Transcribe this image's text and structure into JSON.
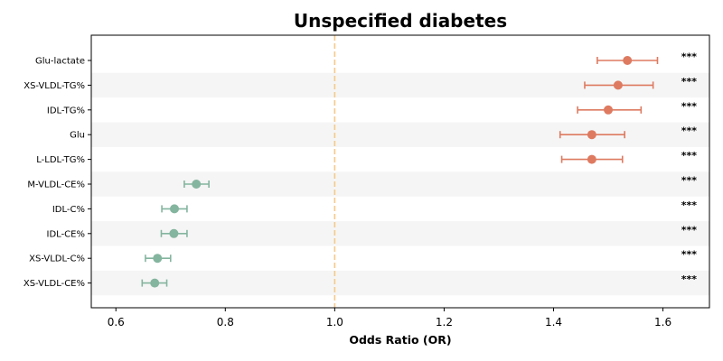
{
  "chart_data": {
    "type": "forest",
    "title": "Unspecified diabetes",
    "xlabel": "Odds Ratio (OR)",
    "xlim": [
      0.555,
      1.685
    ],
    "xticks": [
      0.6,
      0.8,
      1.0,
      1.2,
      1.4,
      1.6
    ],
    "xtick_labels": [
      "0.6",
      "0.8",
      "1.0",
      "1.2",
      "1.4",
      "1.6"
    ],
    "reference_line": 1.0,
    "colors": {
      "positive": "#de7a60",
      "negative": "#84b59f",
      "reference": "#f5c98a",
      "stripe": "#f5f5f5"
    },
    "rows": [
      {
        "label": "Glu-lactate",
        "or": 1.535,
        "ci_low": 1.48,
        "ci_high": 1.59,
        "sig": "***"
      },
      {
        "label": "XS-VLDL-TG%",
        "or": 1.518,
        "ci_low": 1.457,
        "ci_high": 1.582,
        "sig": "***"
      },
      {
        "label": "IDL-TG%",
        "or": 1.5,
        "ci_low": 1.444,
        "ci_high": 1.56,
        "sig": "***"
      },
      {
        "label": "Glu",
        "or": 1.47,
        "ci_low": 1.412,
        "ci_high": 1.53,
        "sig": "***"
      },
      {
        "label": "L-LDL-TG%",
        "or": 1.47,
        "ci_low": 1.415,
        "ci_high": 1.526,
        "sig": "***"
      },
      {
        "label": "M-VLDL-CE%",
        "or": 0.747,
        "ci_low": 0.725,
        "ci_high": 0.77,
        "sig": "***"
      },
      {
        "label": "IDL-C%",
        "or": 0.707,
        "ci_low": 0.684,
        "ci_high": 0.73,
        "sig": "***"
      },
      {
        "label": "IDL-CE%",
        "or": 0.706,
        "ci_low": 0.683,
        "ci_high": 0.73,
        "sig": "***"
      },
      {
        "label": "XS-VLDL-C%",
        "or": 0.676,
        "ci_low": 0.654,
        "ci_high": 0.7,
        "sig": "***"
      },
      {
        "label": "XS-VLDL-CE%",
        "or": 0.671,
        "ci_low": 0.648,
        "ci_high": 0.693,
        "sig": "***"
      }
    ]
  }
}
